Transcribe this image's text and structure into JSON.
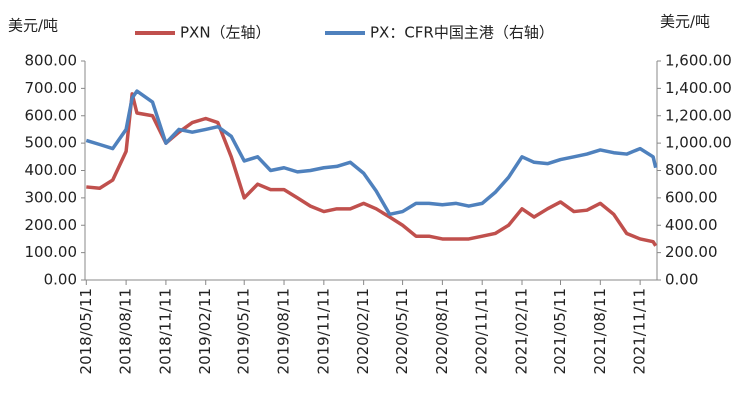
{
  "chart_data": {
    "type": "line",
    "y_label": "美元/吨",
    "y2_label": "美元/吨",
    "x": [
      "2018/05/11",
      "2018/06/11",
      "2018/07/11",
      "2018/08/11",
      "2018/08/25",
      "2018/09/05",
      "2018/10/11",
      "2018/11/11",
      "2018/12/11",
      "2019/01/11",
      "2019/02/11",
      "2019/03/11",
      "2019/04/11",
      "2019/05/11",
      "2019/06/11",
      "2019/07/11",
      "2019/08/11",
      "2019/09/11",
      "2019/10/11",
      "2019/11/11",
      "2019/12/11",
      "2020/01/11",
      "2020/02/11",
      "2020/03/11",
      "2020/04/11",
      "2020/05/11",
      "2020/06/11",
      "2020/07/11",
      "2020/08/11",
      "2020/09/11",
      "2020/10/11",
      "2020/11/11",
      "2020/12/11",
      "2021/01/11",
      "2021/02/11",
      "2021/03/11",
      "2021/04/11",
      "2021/05/11",
      "2021/06/11",
      "2021/07/11",
      "2021/08/11",
      "2021/09/11",
      "2021/10/11",
      "2021/11/11",
      "2021/12/11",
      "2021/12/17"
    ],
    "series": [
      {
        "name": "PXN（左轴）",
        "color": "#c0504d",
        "axis": "y",
        "values": [
          340,
          335,
          365,
          470,
          680,
          610,
          600,
          500,
          540,
          575,
          590,
          575,
          450,
          300,
          350,
          330,
          330,
          300,
          270,
          250,
          260,
          260,
          280,
          260,
          230,
          200,
          160,
          160,
          150,
          150,
          150,
          160,
          170,
          200,
          260,
          230,
          260,
          285,
          250,
          255,
          280,
          240,
          170,
          150,
          140,
          125
        ]
      },
      {
        "name": "PX：CFR中国主港（右轴）",
        "color": "#4f81bd",
        "axis": "y2",
        "values": [
          1020,
          990,
          960,
          1100,
          1330,
          1380,
          1300,
          1000,
          1100,
          1080,
          1100,
          1120,
          1050,
          870,
          900,
          800,
          820,
          790,
          800,
          820,
          830,
          860,
          780,
          650,
          480,
          500,
          560,
          560,
          550,
          560,
          540,
          560,
          640,
          750,
          900,
          860,
          850,
          880,
          900,
          920,
          950,
          930,
          920,
          960,
          900,
          820
        ]
      }
    ],
    "xlim": [
      "2018/05/08",
      "2021/12/20"
    ],
    "xticks": [
      "2018/05/11",
      "2018/08/11",
      "2018/11/11",
      "2019/02/11",
      "2019/05/11",
      "2019/08/11",
      "2019/11/11",
      "2020/02/11",
      "2020/05/11",
      "2020/08/11",
      "2020/11/11",
      "2021/02/11",
      "2021/05/11",
      "2021/08/11",
      "2021/11/11"
    ],
    "ylim": [
      0,
      800
    ],
    "yticks": [
      {
        "value": 0,
        "label": "0.00"
      },
      {
        "value": 100,
        "label": "100.00"
      },
      {
        "value": 200,
        "label": "200.00"
      },
      {
        "value": 300,
        "label": "300.00"
      },
      {
        "value": 400,
        "label": "400.00"
      },
      {
        "value": 500,
        "label": "500.00"
      },
      {
        "value": 600,
        "label": "600.00"
      },
      {
        "value": 700,
        "label": "700.00"
      },
      {
        "value": 800,
        "label": "800.00"
      }
    ],
    "y2lim": [
      0,
      1600
    ],
    "y2ticks": [
      {
        "value": 0,
        "label": "0.00"
      },
      {
        "value": 200,
        "label": "200.00"
      },
      {
        "value": 400,
        "label": "400.00"
      },
      {
        "value": 600,
        "label": "600.00"
      },
      {
        "value": 800,
        "label": "800.00"
      },
      {
        "value": 1000,
        "label": "1,000.00"
      },
      {
        "value": 1200,
        "label": "1,200.00"
      },
      {
        "value": 1400,
        "label": "1,400.00"
      },
      {
        "value": 1600,
        "label": "1,600.00"
      }
    ],
    "grid": false
  }
}
